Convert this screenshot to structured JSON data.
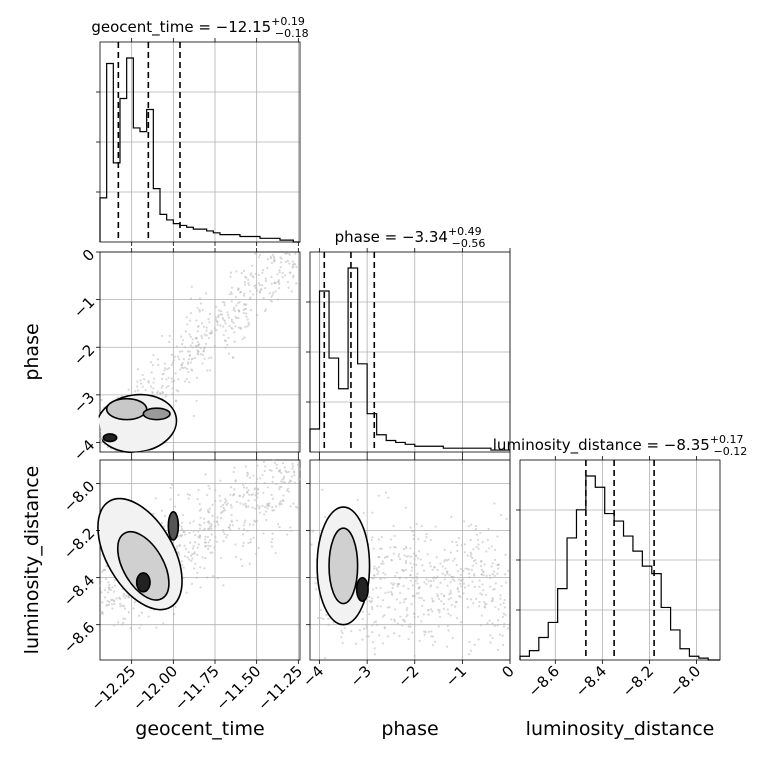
{
  "chart_data": {
    "type": "corner",
    "parameters": [
      "geocent_time",
      "phase",
      "luminosity_distance"
    ],
    "axis_labels": [
      "geocent_time",
      "phase",
      "luminosity_distance"
    ],
    "ranges": {
      "geocent_time": [
        -12.44,
        -11.24
      ],
      "phase": [
        -4.2,
        0.0
      ],
      "luminosity_distance": [
        -8.75,
        -7.9
      ]
    },
    "tick_labels": {
      "geocent_time": {
        "values": [
          -12.25,
          -12.0,
          -11.75,
          -11.5,
          -11.25
        ],
        "labels": [
          "−12.25",
          "−12.00",
          "−11.75",
          "−11.50",
          "−11.25"
        ]
      },
      "phase": {
        "values": [
          -4,
          -3,
          -2,
          -1,
          0
        ],
        "labels": [
          "−4",
          "−3",
          "−2",
          "−1",
          "0"
        ]
      },
      "luminosity_distance": {
        "values": [
          -8.6,
          -8.4,
          -8.2,
          -8.0
        ],
        "labels": [
          "−8.6",
          "−8.4",
          "−8.2",
          "−8.0"
        ]
      }
    },
    "titles": [
      {
        "param": "geocent_time",
        "label": "geocent_time",
        "median": "−12.15",
        "plus": "+0.19",
        "minus": "−0.18"
      },
      {
        "param": "phase",
        "label": "phase",
        "median": "−3.34",
        "plus": "+0.49",
        "minus": "−0.56"
      },
      {
        "param": "luminosity_distance",
        "label": "luminosity_distance",
        "median": "−8.35",
        "plus": "+0.17",
        "minus": "−0.12"
      }
    ],
    "quantiles": {
      "geocent_time": [
        -12.33,
        -12.15,
        -11.96
      ],
      "phase": [
        -3.9,
        -3.34,
        -2.85
      ],
      "luminosity_distance": [
        -8.47,
        -8.35,
        -8.18
      ]
    },
    "histograms": {
      "geocent_time": {
        "edges": [
          -12.44,
          -12.4,
          -12.36,
          -12.32,
          -12.28,
          -12.24,
          -12.2,
          -12.16,
          -12.12,
          -12.08,
          -12.04,
          -12.0,
          -11.96,
          -11.92,
          -11.88,
          -11.84,
          -11.8,
          -11.76,
          -11.72,
          -11.68,
          -11.64,
          -11.6,
          -11.56,
          -11.52,
          -11.48,
          -11.44,
          -11.4,
          -11.36,
          -11.32,
          -11.28,
          -11.24
        ],
        "counts": [
          0.24,
          0.97,
          0.43,
          0.78,
          1.0,
          0.62,
          0.6,
          0.72,
          0.29,
          0.15,
          0.12,
          0.1,
          0.09,
          0.08,
          0.07,
          0.07,
          0.06,
          0.05,
          0.04,
          0.04,
          0.04,
          0.03,
          0.03,
          0.03,
          0.02,
          0.02,
          0.02,
          0.01,
          0.01,
          0.0
        ]
      },
      "phase": {
        "edges": [
          -4.2,
          -4.0,
          -3.8,
          -3.6,
          -3.4,
          -3.2,
          -3.0,
          -2.8,
          -2.6,
          -2.4,
          -2.2,
          -2.0,
          -1.8,
          -1.6,
          -1.4,
          -1.2,
          -1.0,
          -0.8,
          -0.6,
          -0.4,
          -0.2,
          0.0
        ],
        "counts": [
          0.12,
          0.84,
          0.49,
          0.33,
          0.96,
          0.46,
          0.2,
          0.09,
          0.06,
          0.05,
          0.04,
          0.03,
          0.03,
          0.03,
          0.02,
          0.02,
          0.02,
          0.02,
          0.02,
          0.01,
          0.01
        ]
      },
      "luminosity_distance": {
        "edges": [
          -8.75,
          -8.71,
          -8.67,
          -8.63,
          -8.59,
          -8.55,
          -8.51,
          -8.47,
          -8.43,
          -8.39,
          -8.35,
          -8.31,
          -8.27,
          -8.23,
          -8.19,
          -8.15,
          -8.11,
          -8.07,
          -8.03,
          -7.99,
          -7.95,
          -7.9
        ],
        "counts": [
          0.02,
          0.05,
          0.12,
          0.2,
          0.38,
          0.65,
          0.8,
          0.98,
          0.92,
          0.78,
          0.74,
          0.66,
          0.58,
          0.5,
          0.46,
          0.28,
          0.16,
          0.06,
          0.02,
          0.01,
          0.0
        ]
      }
    },
    "grid": true,
    "contour_style": "filled-grey-with-black-outline"
  }
}
